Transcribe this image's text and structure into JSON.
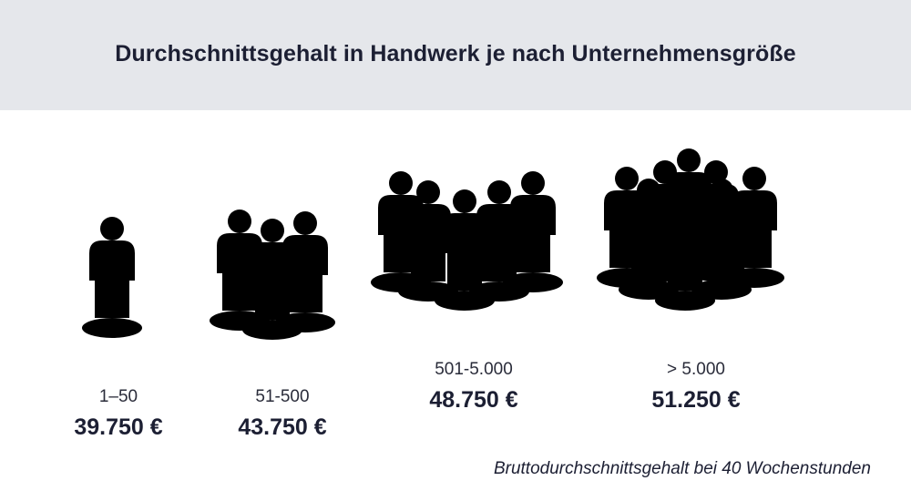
{
  "title": "Durchschnittsgehalt in Handwerk je nach Unternehmensgröße",
  "groups": [
    {
      "range": "1–50",
      "salary": "39.750 €",
      "people_count": 1
    },
    {
      "range": "51-500",
      "salary": "43.750 €",
      "people_count": 3
    },
    {
      "range": "501-5.000",
      "salary": "48.750 €",
      "people_count": 5
    },
    {
      "range": "> 5.000",
      "salary": "51.250 €",
      "people_count": 9
    }
  ],
  "footnote": "Bruttodurchschnittsgehalt bei 40 Wochenstunden",
  "icons": [
    "person-icon"
  ],
  "colors": {
    "header_background": "#e5e7eb",
    "text": "#1c1f33",
    "icon_stroke": "#000000"
  }
}
